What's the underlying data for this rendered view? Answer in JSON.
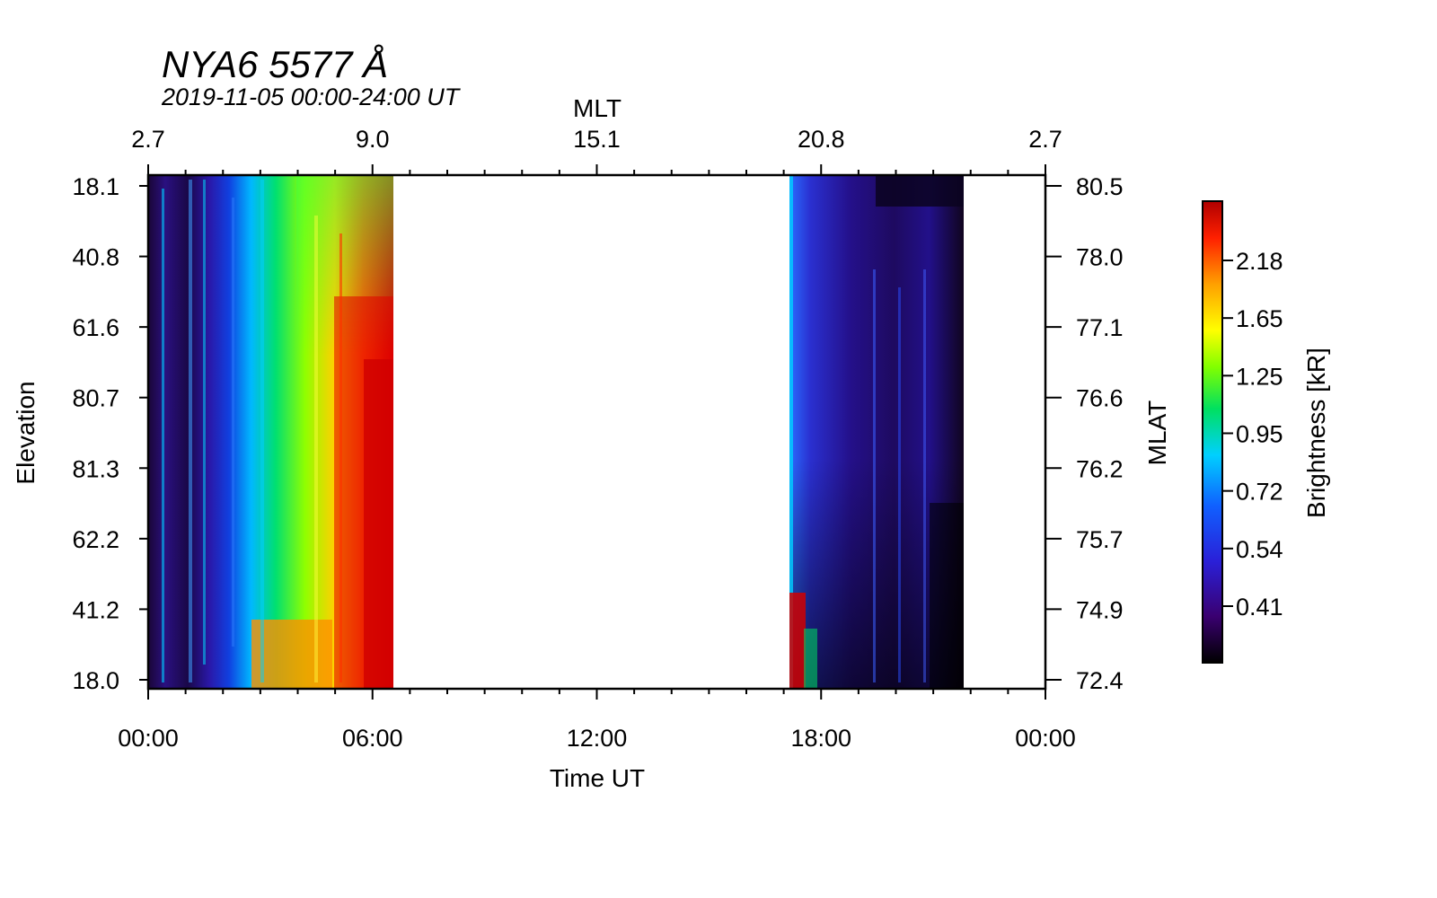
{
  "chart_data": {
    "type": "heatmap",
    "title": "NYA6 5577 Å",
    "subtitle": "2019-11-05 00:00-24:00 UT",
    "xlabel": "Time UT",
    "ylabel": "Elevation",
    "top_axis_label": "MLT",
    "right_axis_label": "MLAT",
    "colorbar_label": "Brightness [kR]",
    "x_ticks": [
      "00:00",
      "06:00",
      "12:00",
      "18:00",
      "00:00"
    ],
    "mlt_ticks": [
      "2.7",
      "9.0",
      "15.1",
      "20.8",
      "2.7"
    ],
    "elevation_ticks": [
      "18.1",
      "40.8",
      "61.6",
      "80.7",
      "81.3",
      "62.2",
      "41.2",
      "18.0"
    ],
    "mlat_ticks": [
      "80.5",
      "78.0",
      "77.1",
      "76.6",
      "76.2",
      "75.7",
      "74.9",
      "72.4"
    ],
    "colorbar_ticks": [
      "2.18",
      "1.65",
      "1.25",
      "0.95",
      "0.72",
      "0.54",
      "0.41"
    ],
    "data_segments": [
      {
        "start_ut": "00:00",
        "end_ut": "06:33"
      },
      {
        "start_ut": "17:10",
        "end_ut": "21:48"
      }
    ],
    "colormap": [
      "#000000",
      "#3a0070",
      "#2a20d8",
      "#1060ff",
      "#00d0ff",
      "#00e060",
      "#80ff00",
      "#ffff00",
      "#ffa000",
      "#ff2000",
      "#b00000"
    ]
  }
}
